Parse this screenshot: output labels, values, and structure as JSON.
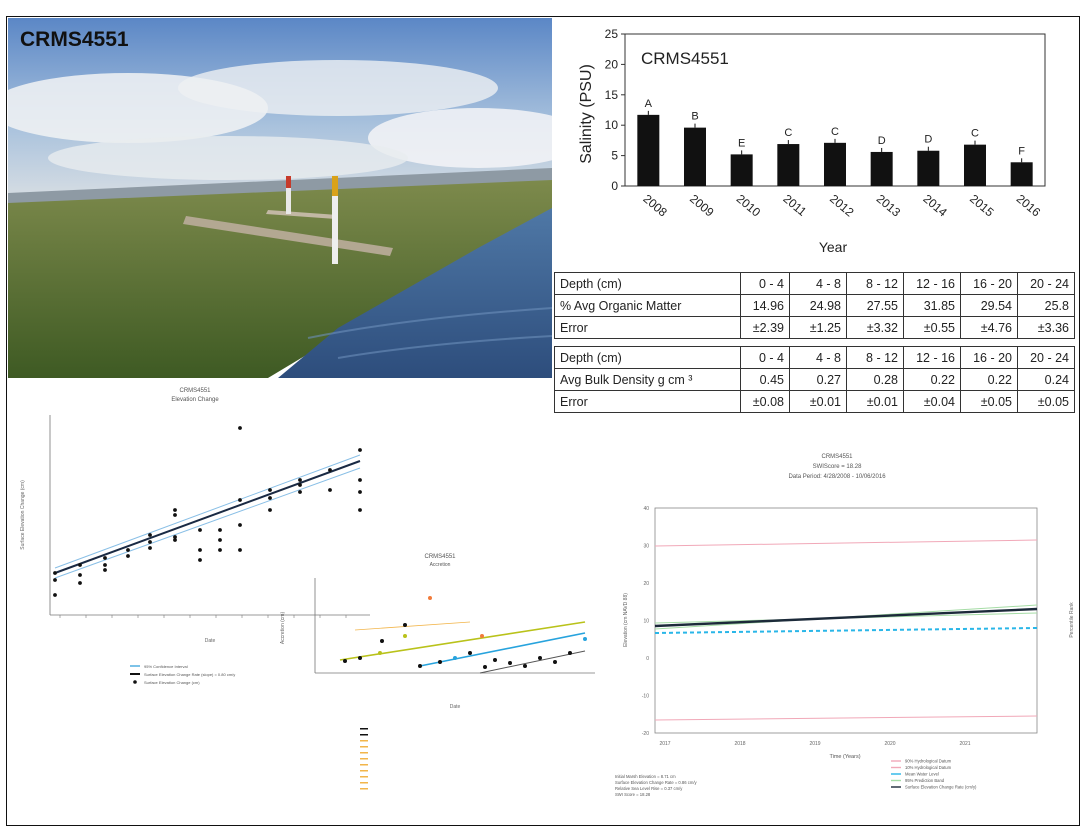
{
  "photo": {
    "title": "CRMS4551"
  },
  "chart_data": [
    {
      "type": "bar",
      "title": "CRMS4551",
      "xlabel": "Year",
      "ylabel": "Salinity (PSU)",
      "ylim": [
        0,
        25
      ],
      "yticks": [
        "0",
        "5",
        "10",
        "15",
        "20",
        "25"
      ],
      "categories": [
        "2008",
        "2009",
        "2010",
        "2011",
        "2012",
        "2013",
        "2014",
        "2015",
        "2016"
      ],
      "values": [
        11.7,
        9.6,
        5.2,
        6.9,
        7.1,
        5.6,
        5.8,
        6.8,
        3.9
      ],
      "letters": [
        "A",
        "B",
        "E",
        "C",
        "C",
        "D",
        "D",
        "C",
        "F"
      ]
    },
    {
      "type": "table",
      "rows": [
        [
          "Depth (cm)",
          "0 - 4",
          "4 - 8",
          "8 - 12",
          "12 - 16",
          "16 - 20",
          "20 - 24"
        ],
        [
          "% Avg Organic Matter",
          "14.96",
          "24.98",
          "27.55",
          "31.85",
          "29.54",
          "25.8"
        ],
        [
          "Error",
          "±2.39",
          "±1.25",
          "±3.32",
          "±0.55",
          "±4.76",
          "±3.36"
        ]
      ]
    },
    {
      "type": "table",
      "rows": [
        [
          "Depth (cm)",
          "0 - 4",
          "4 - 8",
          "8 - 12",
          "12 - 16",
          "16 - 20",
          "20 - 24"
        ],
        [
          "Avg Bulk Density g cm ³",
          "0.45",
          "0.27",
          "0.28",
          "0.22",
          "0.22",
          "0.24"
        ],
        [
          "Error",
          "±0.08",
          "±0.01",
          "±0.01",
          "±0.04",
          "±0.05",
          "±0.05"
        ]
      ]
    },
    {
      "type": "scatter",
      "title": "CRMS4551",
      "subtitle": "Elevation Change",
      "xlabel": "Date",
      "ylabel": "Surface Elevation Change (cm)",
      "legend": [
        "95% Confidence Interval",
        "Surface Elevation Change Rate (slope) = 0.80 cm/y",
        "Surface Elevation Change (cm)"
      ]
    },
    {
      "type": "scatter",
      "title": "CRMS4551",
      "subtitle": "Accretion",
      "xlabel": "Date",
      "ylabel": "Accretion (cm)"
    },
    {
      "type": "line",
      "title": "CRMS4551",
      "subtitle": "SWIScore = 18.28",
      "subtitle2": "Data Period: 4/28/2008 - 10/06/2016",
      "xlabel": "Time (Years)",
      "categories": [
        "2017",
        "2018",
        "2019",
        "2020",
        "2021"
      ],
      "yticks": [
        "40",
        "30",
        "20",
        "10",
        "0",
        "-10",
        "-20"
      ],
      "ylabel": "Elevation (cm NAVD 88)",
      "ylabel_right": "Percentile Rank",
      "legend": [
        "90% Hydrological Datum",
        "10% Hydrological Datum",
        "Mean Water Level",
        "95% Prediction Band",
        "Surface Elevation Change Rate (cm/y)"
      ],
      "notes": [
        "Initial Marsh Elevation = 8.71 cm",
        "Surface Elevation Change Rate = 0.86 cm/y",
        "Relative Sea Level Rise = 0.37 cm/y",
        "SWI Score = 18.28"
      ]
    }
  ]
}
